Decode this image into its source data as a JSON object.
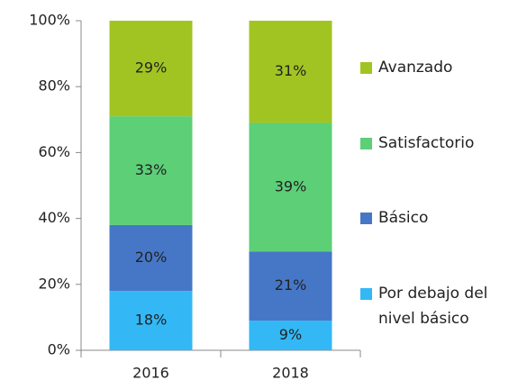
{
  "chart_data": {
    "type": "stacked_bar",
    "categories": [
      "2016",
      "2018"
    ],
    "series": [
      {
        "name": "Por debajo del nivel básico",
        "color": "#33b8f5",
        "values": [
          18,
          9
        ],
        "value_labels": [
          "18%",
          "9%"
        ]
      },
      {
        "name": "Básico",
        "color": "#4677c7",
        "values": [
          20,
          21
        ],
        "value_labels": [
          "20%",
          "21%"
        ]
      },
      {
        "name": "Satisfactorio",
        "color": "#5ccf77",
        "values": [
          33,
          39
        ],
        "value_labels": [
          "33%",
          "39%"
        ]
      },
      {
        "name": "Avanzado",
        "color": "#a2c423",
        "values": [
          29,
          31
        ],
        "value_labels": [
          "29%",
          "31%"
        ]
      }
    ],
    "ylim": [
      0,
      100
    ],
    "yticks": [
      {
        "value": 0,
        "label": "0%"
      },
      {
        "value": 20,
        "label": "20%"
      },
      {
        "value": 40,
        "label": "40%"
      },
      {
        "value": 60,
        "label": "60%"
      },
      {
        "value": 80,
        "label": "80%"
      },
      {
        "value": 100,
        "label": "100%"
      }
    ],
    "legend": "right"
  }
}
